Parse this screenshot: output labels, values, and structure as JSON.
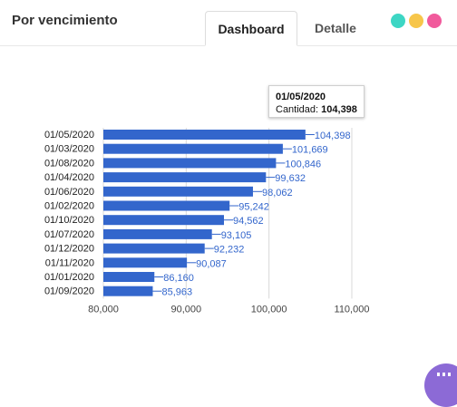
{
  "header": {
    "title": "Por vencimiento",
    "tabs": [
      {
        "label": "Dashboard",
        "active": true
      },
      {
        "label": "Detalle",
        "active": false
      }
    ],
    "dots": [
      {
        "name": "teal-dot",
        "color": "#3dd6c4"
      },
      {
        "name": "yellow-dot",
        "color": "#f7c64a"
      },
      {
        "name": "pink-dot",
        "color": "#f15a9c"
      }
    ]
  },
  "tooltip": {
    "date": "01/05/2020",
    "label": "Cantidad: ",
    "value": "104,398"
  },
  "chart_data": {
    "type": "bar",
    "orientation": "horizontal",
    "categories": [
      "01/05/2020",
      "01/03/2020",
      "01/08/2020",
      "01/04/2020",
      "01/06/2020",
      "01/02/2020",
      "01/10/2020",
      "01/07/2020",
      "01/12/2020",
      "01/11/2020",
      "01/01/2020",
      "01/09/2020"
    ],
    "series": [
      {
        "values": [
          104398,
          101669,
          100846,
          99632,
          98062,
          95242,
          94562,
          93105,
          92232,
          90087,
          86160,
          85963
        ],
        "labels": [
          "104,398",
          "101,669",
          "100,846",
          "99,632",
          "98,062",
          "95,242",
          "94,562",
          "93,105",
          "92,232",
          "90,087",
          "86,160",
          "85,963"
        ],
        "color": "#3366cc"
      }
    ],
    "xlim": [
      80000,
      110000
    ],
    "xticks": [
      80000,
      90000,
      100000,
      110000
    ],
    "xtick_labels": [
      "80,000",
      "90,000",
      "100,000",
      "110,000"
    ],
    "grid": true,
    "label_color": "#3366cc"
  }
}
